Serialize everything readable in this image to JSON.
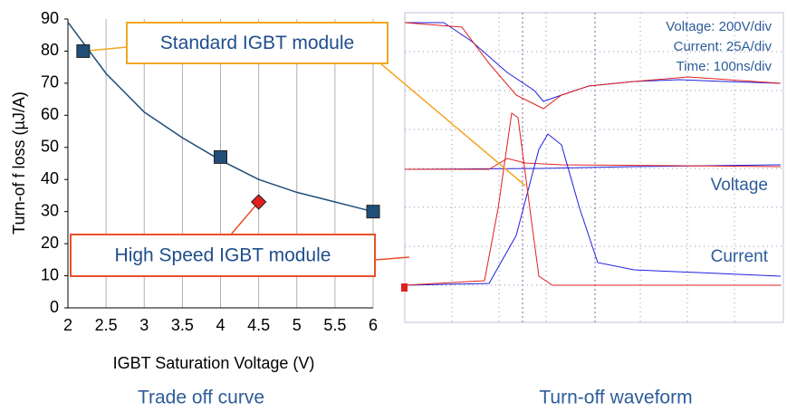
{
  "chart_data": {
    "type": "scatter",
    "xlabel": "IGBT Saturation Voltage (V)",
    "ylabel": "Turn-of f loss (µJ/A)",
    "caption": "Trade off curve",
    "xlim": [
      2,
      6
    ],
    "ylim": [
      0,
      90
    ],
    "xticks": [
      2,
      2.5,
      3,
      3.5,
      4,
      4.5,
      5,
      5.5,
      6
    ],
    "yticks": [
      0,
      10,
      20,
      30,
      40,
      50,
      60,
      70,
      80,
      90
    ],
    "grid": "x",
    "curve": {
      "color": "#1f4e79",
      "x": [
        2,
        2.5,
        3,
        3.5,
        4,
        4.5,
        5,
        5.5,
        6
      ],
      "values": [
        89,
        73,
        61,
        53,
        46,
        40,
        36,
        33,
        30
      ]
    },
    "series": [
      {
        "name": "Standard IGBT module",
        "color": "#1f4e79",
        "marker": "square",
        "x": [
          2.2,
          4,
          6
        ],
        "values": [
          80,
          47,
          30
        ]
      },
      {
        "name": "High Speed IGBT module",
        "color": "#e02020",
        "marker": "diamond",
        "x": [
          4.5
        ],
        "values": [
          33
        ]
      }
    ]
  },
  "waveform": {
    "caption": "Turn-off waveform",
    "scale_labels": [
      "Voltage: 200V/div",
      "Current: 25A/div",
      "Time: 100ns/div"
    ],
    "trace_labels": [
      "Voltage",
      "Current"
    ]
  }
}
